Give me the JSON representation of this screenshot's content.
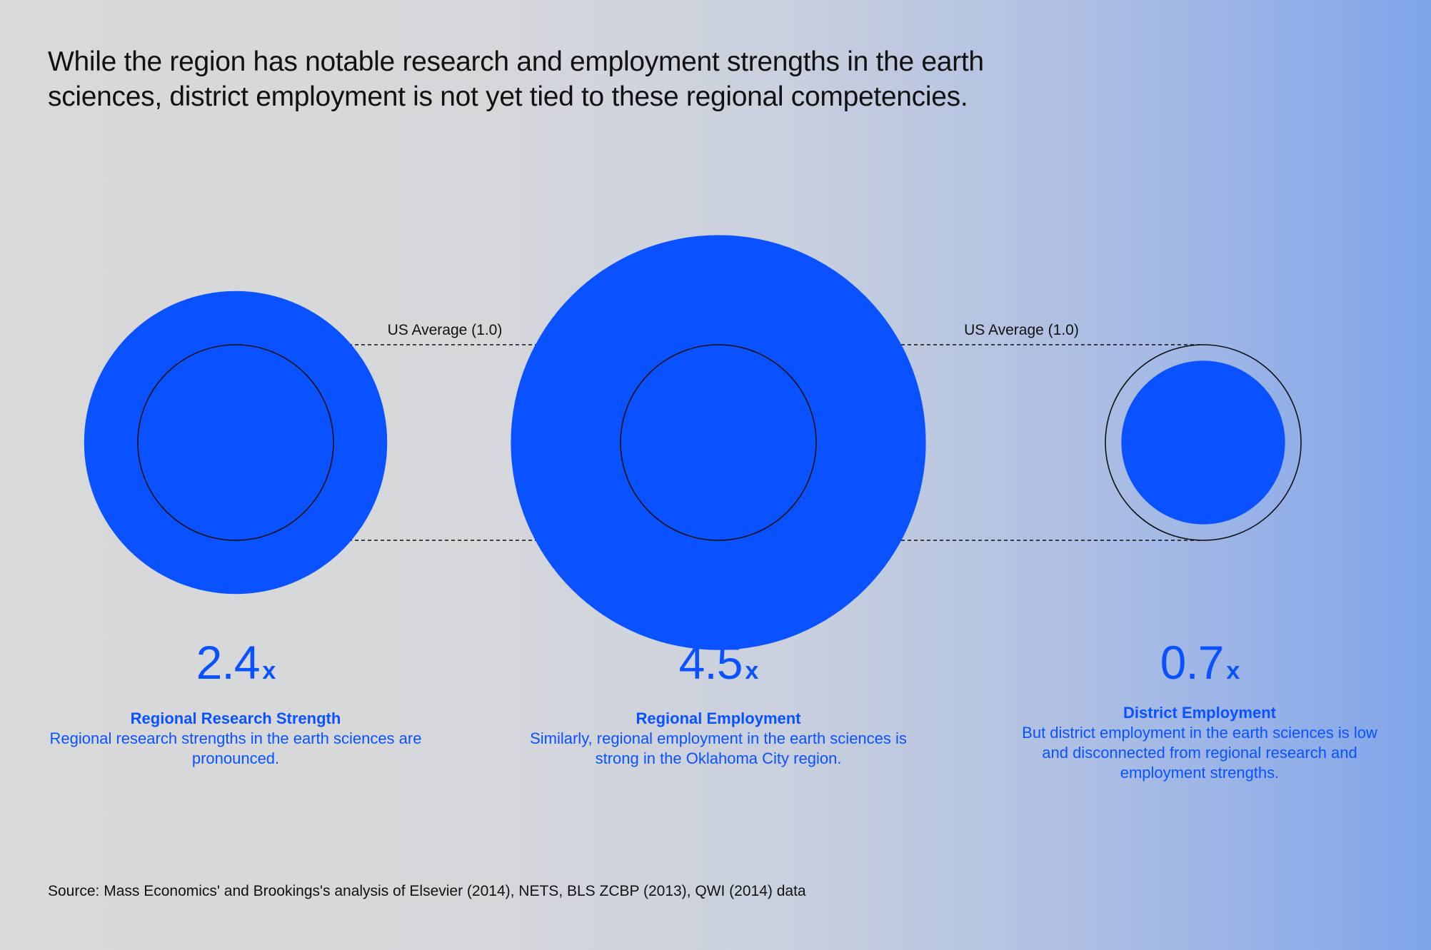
{
  "headline": "While the region has notable research and employment strengths in the earth sciences, district employment is not yet tied to these regional competencies.",
  "chart_data": {
    "type": "bubble",
    "reference_label": "US Average (1.0)",
    "reference_value": 1.0,
    "unit_suffix": "x",
    "items": [
      {
        "value": 2.4,
        "value_text": "2.4",
        "label": "Regional Research Strength",
        "description": "Regional research strengths in the earth sciences are pronounced."
      },
      {
        "value": 4.5,
        "value_text": "4.5",
        "label": "Regional Employment",
        "description": "Similarly, regional employment in the earth sciences is strong in the Oklahoma City region."
      },
      {
        "value": 0.7,
        "value_text": "0.7",
        "label": "District Employment",
        "description": "But district employment in the earth sciences is low and disconnected from regional research and employment strengths."
      }
    ]
  },
  "source": "Source: Mass Economics' and Brookings's analysis of Elsevier (2014), NETS, BLS ZCBP (2013), QWI (2014) data",
  "colors": {
    "accent": "#0a52ff",
    "ink": "#111111"
  }
}
